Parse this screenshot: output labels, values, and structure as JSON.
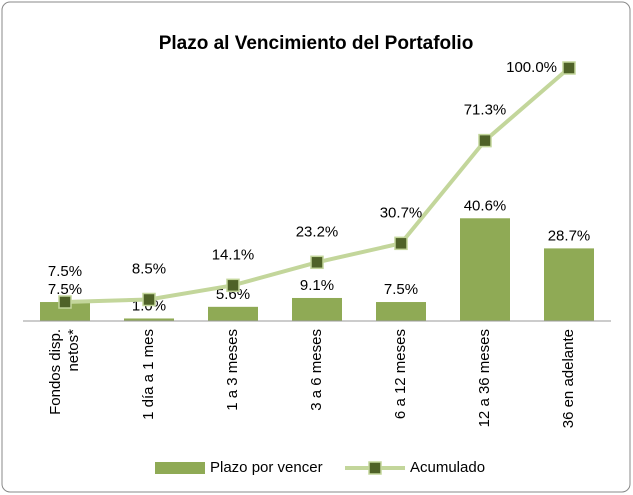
{
  "chart_data": {
    "type": "bar-line",
    "title": "Plazo al Vencimiento del Portafolio",
    "categories": [
      "Fondos disp. netos*",
      "1 día a 1 mes",
      "1 a 3 meses",
      "3 a 6 meses",
      "6 a 12 meses",
      "12 a 36 meses",
      "36 en adelante"
    ],
    "ylim": [
      0,
      100
    ],
    "series": [
      {
        "name": "Plazo por vencer",
        "type": "bar",
        "color": "#8faa55",
        "values": [
          7.5,
          1.0,
          5.6,
          9.1,
          7.5,
          40.6,
          28.7
        ],
        "value_labels": [
          "7.5%",
          "1.0%",
          "5.6%",
          "9.1%",
          "7.5%",
          "40.6%",
          "28.7%"
        ]
      },
      {
        "name": "Acumulado",
        "type": "line",
        "color": "#c3d69b",
        "marker_color": "#4f6228",
        "values": [
          7.5,
          8.5,
          14.1,
          23.2,
          30.7,
          71.3,
          100.0
        ],
        "value_labels": [
          "7.5%",
          "8.5%",
          "14.1%",
          "23.2%",
          "30.7%",
          "71.3%",
          "100.0%"
        ]
      }
    ]
  }
}
